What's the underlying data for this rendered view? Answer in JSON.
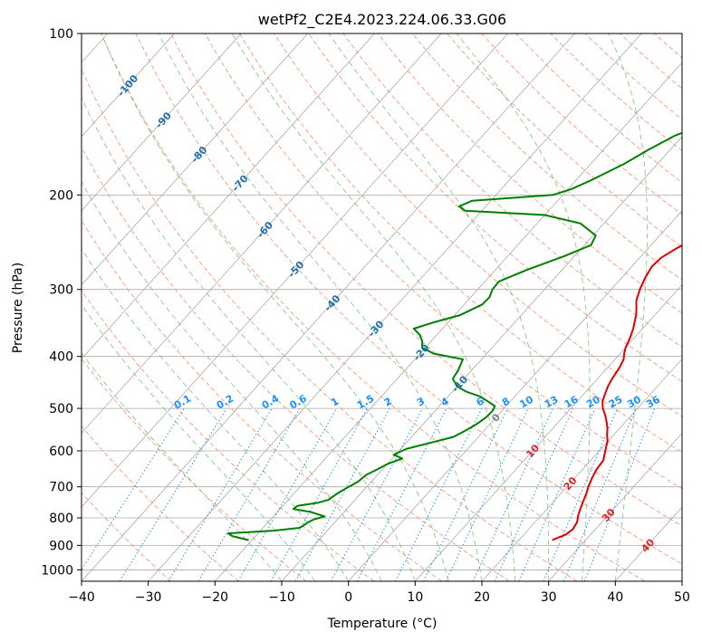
{
  "chart_data": {
    "type": "line",
    "title": "wetPf2_C2E4.2023.224.06.33.G06",
    "xlabel": "Temperature (°C)",
    "ylabel": "Pressure (hPa)",
    "xlim": [
      -40,
      50
    ],
    "ylim": [
      1050,
      100
    ],
    "y_scale": "log",
    "grid": true,
    "x_ticks": [
      -40,
      -30,
      -20,
      -10,
      0,
      10,
      20,
      30,
      40,
      50
    ],
    "y_ticks": [
      100,
      200,
      300,
      400,
      500,
      600,
      700,
      800,
      900,
      1000
    ],
    "series": [
      {
        "color": "#e00000",
        "points": [
          [
            25,
            880
          ],
          [
            25.6,
            870
          ],
          [
            26.3,
            860
          ],
          [
            26.6,
            840
          ],
          [
            26.3,
            815
          ],
          [
            25.5,
            790
          ],
          [
            25,
            770
          ],
          [
            24.4,
            745
          ],
          [
            23.8,
            720
          ],
          [
            23.2,
            700
          ],
          [
            22.6,
            675
          ],
          [
            22.1,
            650
          ],
          [
            21.9,
            625
          ],
          [
            21.1,
            605
          ],
          [
            20.5,
            590
          ],
          [
            19.9,
            575
          ],
          [
            19,
            560
          ],
          [
            18.2,
            545
          ],
          [
            17.2,
            530
          ],
          [
            16.1,
            515
          ],
          [
            14.8,
            500
          ],
          [
            13.8,
            485
          ],
          [
            13.2,
            470
          ],
          [
            12.6,
            455
          ],
          [
            12.2,
            440
          ],
          [
            11.8,
            420
          ],
          [
            11.3,
            405
          ],
          [
            10.6,
            395
          ],
          [
            10,
            385
          ],
          [
            9.4,
            370
          ],
          [
            8.6,
            355
          ],
          [
            7.9,
            345
          ],
          [
            7.2,
            335
          ],
          [
            6.3,
            325
          ],
          [
            5.3,
            315
          ],
          [
            4.3,
            300
          ],
          [
            3.5,
            285
          ],
          [
            3,
            272
          ],
          [
            3.2,
            262
          ],
          [
            4.2,
            252
          ],
          [
            5.8,
            240
          ],
          [
            7.6,
            228
          ],
          [
            9.5,
            215
          ],
          [
            10.3,
            205
          ],
          [
            10.3,
            195
          ],
          [
            10,
            180
          ],
          [
            9.4,
            165
          ],
          [
            8.6,
            152
          ],
          [
            7.4,
            140
          ],
          [
            6,
            130
          ],
          [
            5.2,
            122
          ],
          [
            5.1,
            115
          ],
          [
            5.7,
            109
          ],
          [
            6.8,
            103
          ],
          [
            7.6,
            100
          ]
        ]
      },
      {
        "color": "#008000",
        "points": [
          [
            -20.5,
            880
          ],
          [
            -23.5,
            865
          ],
          [
            -24.5,
            855
          ],
          [
            -18,
            845
          ],
          [
            -14.5,
            835
          ],
          [
            -14.2,
            825
          ],
          [
            -14,
            815
          ],
          [
            -13.5,
            805
          ],
          [
            -12.3,
            795
          ],
          [
            -15,
            780
          ],
          [
            -18,
            770
          ],
          [
            -17.8,
            760
          ],
          [
            -15.2,
            750
          ],
          [
            -14,
            740
          ],
          [
            -13.5,
            720
          ],
          [
            -12.7,
            700
          ],
          [
            -12,
            685
          ],
          [
            -11.7,
            665
          ],
          [
            -10.8,
            650
          ],
          [
            -10,
            635
          ],
          [
            -8.5,
            620
          ],
          [
            -10.3,
            610
          ],
          [
            -9.2,
            595
          ],
          [
            -6.5,
            580
          ],
          [
            -3.7,
            565
          ],
          [
            -2.8,
            550
          ],
          [
            -2,
            535
          ],
          [
            -1.5,
            520
          ],
          [
            -1.4,
            505
          ],
          [
            -1.7,
            495
          ],
          [
            -3.4,
            485
          ],
          [
            -5.2,
            475
          ],
          [
            -8,
            465
          ],
          [
            -10,
            455
          ],
          [
            -11.7,
            440
          ],
          [
            -12,
            425
          ],
          [
            -12.8,
            405
          ],
          [
            -18,
            395
          ],
          [
            -20.5,
            385
          ],
          [
            -21.3,
            375
          ],
          [
            -22.5,
            365
          ],
          [
            -24.3,
            355
          ],
          [
            -22,
            345
          ],
          [
            -19.2,
            335
          ],
          [
            -17.3,
            320
          ],
          [
            -17.2,
            310
          ],
          [
            -17.8,
            300
          ],
          [
            -17.9,
            290
          ],
          [
            -15.3,
            276
          ],
          [
            -11.5,
            260
          ],
          [
            -9,
            248
          ],
          [
            -9.6,
            238
          ],
          [
            -13.5,
            226
          ],
          [
            -20,
            218
          ],
          [
            -32.5,
            214
          ],
          [
            -34,
            210
          ],
          [
            -32.8,
            205
          ],
          [
            -26,
            202
          ],
          [
            -21.5,
            200
          ],
          [
            -19.5,
            195
          ],
          [
            -17.8,
            188
          ],
          [
            -15,
            175
          ],
          [
            -13.3,
            165
          ],
          [
            -11.2,
            155
          ],
          [
            -7.2,
            145
          ],
          [
            -3.8,
            135
          ],
          [
            -1.1,
            125
          ],
          [
            0.9,
            115
          ],
          [
            2,
            108
          ],
          [
            2.8,
            100
          ]
        ]
      }
    ],
    "annotations": {
      "isotherm_labels": [
        "-100",
        "-90",
        "-80",
        "-70",
        "-60",
        "-50",
        "-40",
        "-30",
        "-20",
        "-10",
        "0",
        "10",
        "20",
        "30",
        "40"
      ],
      "mixing_ratio_labels": [
        "0.1",
        "0.2",
        "0.4",
        "0.6",
        "1",
        "1.5",
        "2",
        "3",
        "4",
        "6",
        "8",
        "10",
        "13",
        "16",
        "20",
        "25",
        "30",
        "36"
      ]
    }
  },
  "colors": {
    "temperature": "#e00000",
    "dewpoint": "#008000",
    "isotherm_label_blue": "#1f6fb0",
    "isotherm_label_red": "#d62728",
    "isotherm_label_gray": "#808080",
    "mixing_ratio": "#1e90ff",
    "dry_adiabat": "#ff8c69",
    "moist_adiabat": "#7cc47c",
    "grid": "#aaaaaa"
  }
}
